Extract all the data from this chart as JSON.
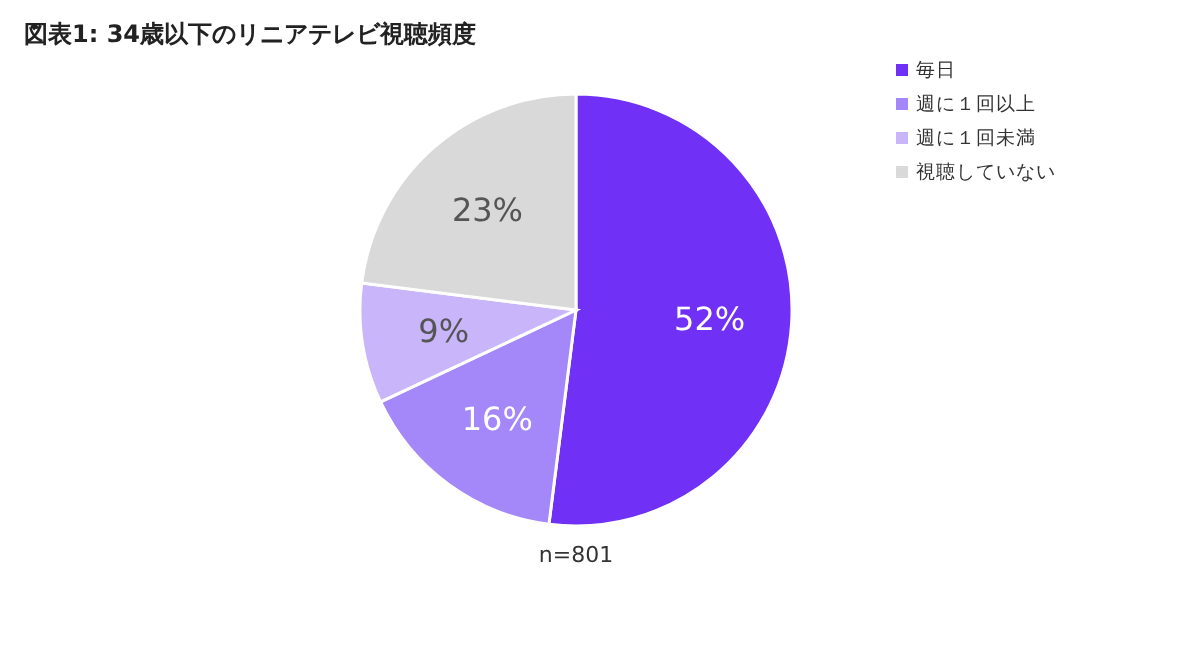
{
  "chart_data": {
    "type": "pie",
    "title": "図表1: 34歳以下のリニアテレビ視聴頻度",
    "categories": [
      "毎日",
      "週に１回以上",
      "週に１回未満",
      "視聴していない"
    ],
    "values": [
      52,
      16,
      9,
      23
    ],
    "colors": [
      "#7030f5",
      "#a487f8",
      "#c9b5fa",
      "#d9d9d9"
    ],
    "value_labels": [
      "52%",
      "16%",
      "9%",
      "23%"
    ],
    "legend": "top right",
    "annotations": [
      "n=801"
    ]
  }
}
